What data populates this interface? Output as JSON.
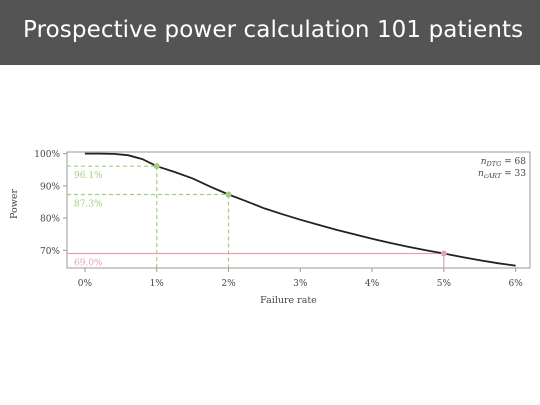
{
  "slide": {
    "title": "Prospective power calculation 101 patients"
  },
  "colors": {
    "title_bg": "#545454",
    "curve": "#222222",
    "green": "#9fcf7f",
    "pink": "#e8a0b8",
    "axis": "#9a9a9a",
    "tick_text": "#444444"
  },
  "chart_data": {
    "type": "line",
    "xlabel": "Failure rate",
    "ylabel": "Power",
    "xlim": [
      -0.25,
      6.2
    ],
    "ylim": [
      64.5,
      100.5
    ],
    "x_ticks": [
      0,
      1,
      2,
      3,
      4,
      5,
      6
    ],
    "x_tick_labels": [
      "0%",
      "1%",
      "2%",
      "3%",
      "4%",
      "5%",
      "6%"
    ],
    "y_ticks": [
      70,
      80,
      90,
      100
    ],
    "y_tick_labels": [
      "70%",
      "80%",
      "90%",
      "100%"
    ],
    "grid": false,
    "legend": {
      "position": "top-right",
      "lines": [
        {
          "label": "n",
          "sub": "DTG",
          "value": "= 68"
        },
        {
          "label": "n",
          "sub": "cART",
          "value": "= 33"
        }
      ]
    },
    "series": [
      {
        "x": [
          0,
          0.2,
          0.4,
          0.6,
          0.8,
          1.0,
          1.25,
          1.5,
          1.75,
          2.0,
          2.25,
          2.5,
          2.75,
          3.0,
          3.25,
          3.5,
          3.75,
          4.0,
          4.25,
          4.5,
          4.75,
          5.0,
          5.25,
          5.5,
          5.75,
          6.0
        ],
        "y": [
          100,
          100,
          99.9,
          99.5,
          98.3,
          96.1,
          94.3,
          92.3,
          89.7,
          87.3,
          85.2,
          83.0,
          81.2,
          79.5,
          77.9,
          76.4,
          75.0,
          73.6,
          72.3,
          71.1,
          70.0,
          69.0,
          67.9,
          66.9,
          66.0,
          65.2
        ]
      }
    ],
    "highlights": [
      {
        "x": 1,
        "y": 96.1,
        "label": "96.1%",
        "color": "green"
      },
      {
        "x": 2,
        "y": 87.3,
        "label": "87.3%",
        "color": "green"
      },
      {
        "x": 5,
        "y": 69.0,
        "label": "69.0%",
        "color": "pink"
      }
    ]
  }
}
